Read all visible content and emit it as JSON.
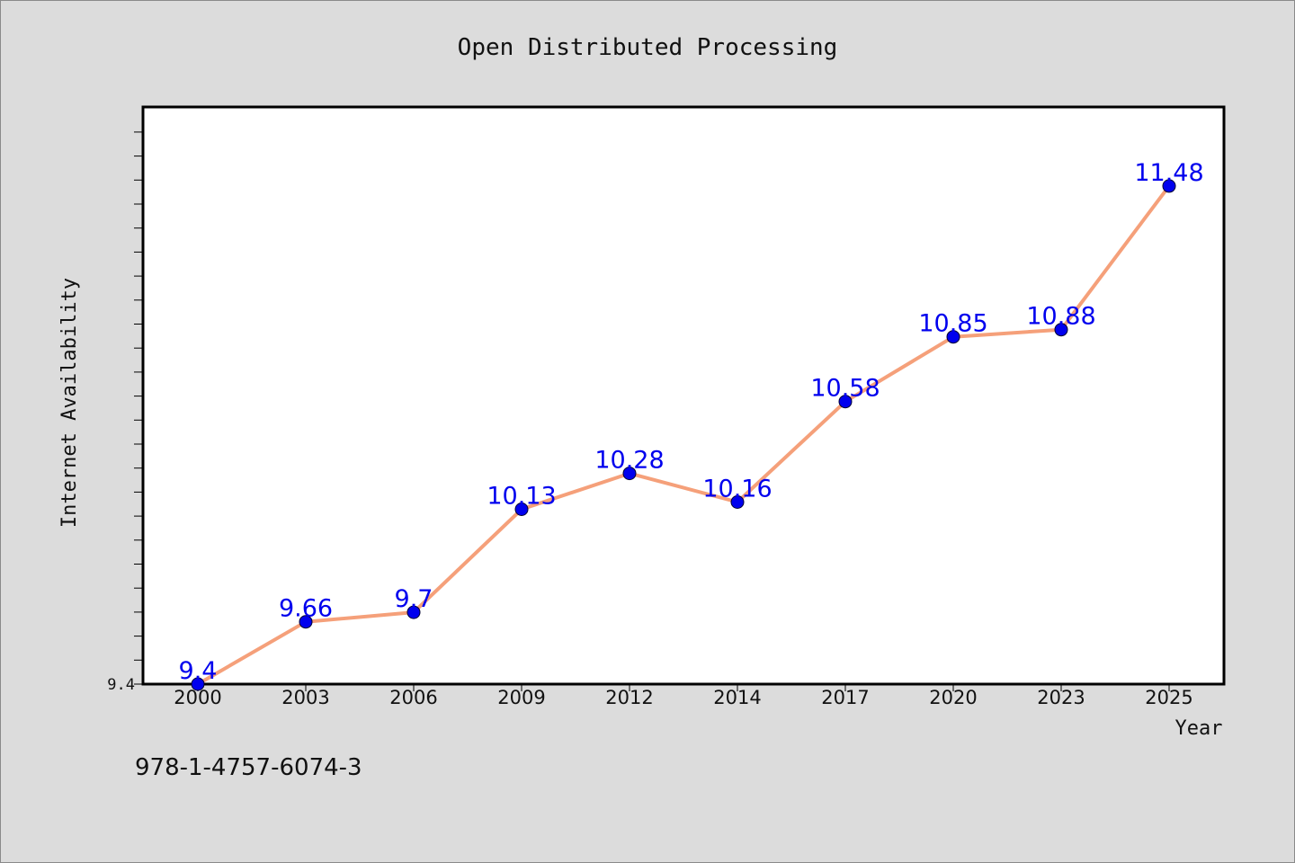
{
  "chart_data": {
    "type": "line",
    "title": "Open Distributed Processing",
    "xlabel": "Year",
    "ylabel": "Internet Availability",
    "categories": [
      "2000",
      "2003",
      "2006",
      "2009",
      "2012",
      "2014",
      "2017",
      "2020",
      "2023",
      "2025"
    ],
    "series": [
      {
        "values": [
          9.4,
          9.66,
          9.7,
          10.13,
          10.28,
          10.16,
          10.58,
          10.85,
          10.88,
          11.48
        ],
        "line_color": "#f5a07a",
        "marker_color": "#0000ee",
        "label_color": "#0000ee"
      }
    ],
    "ylim": [
      9.4,
      11.81
    ],
    "y_tick_labels": [
      "9.4"
    ],
    "grid": false,
    "legend": "none",
    "data_labels": [
      "9.4",
      "9.66",
      "9.7",
      "10.13",
      "10.28",
      "10.16",
      "10.58",
      "10.85",
      "10.88",
      "11.48"
    ]
  },
  "footer": {
    "isbn": "978-1-4757-6074-3"
  }
}
